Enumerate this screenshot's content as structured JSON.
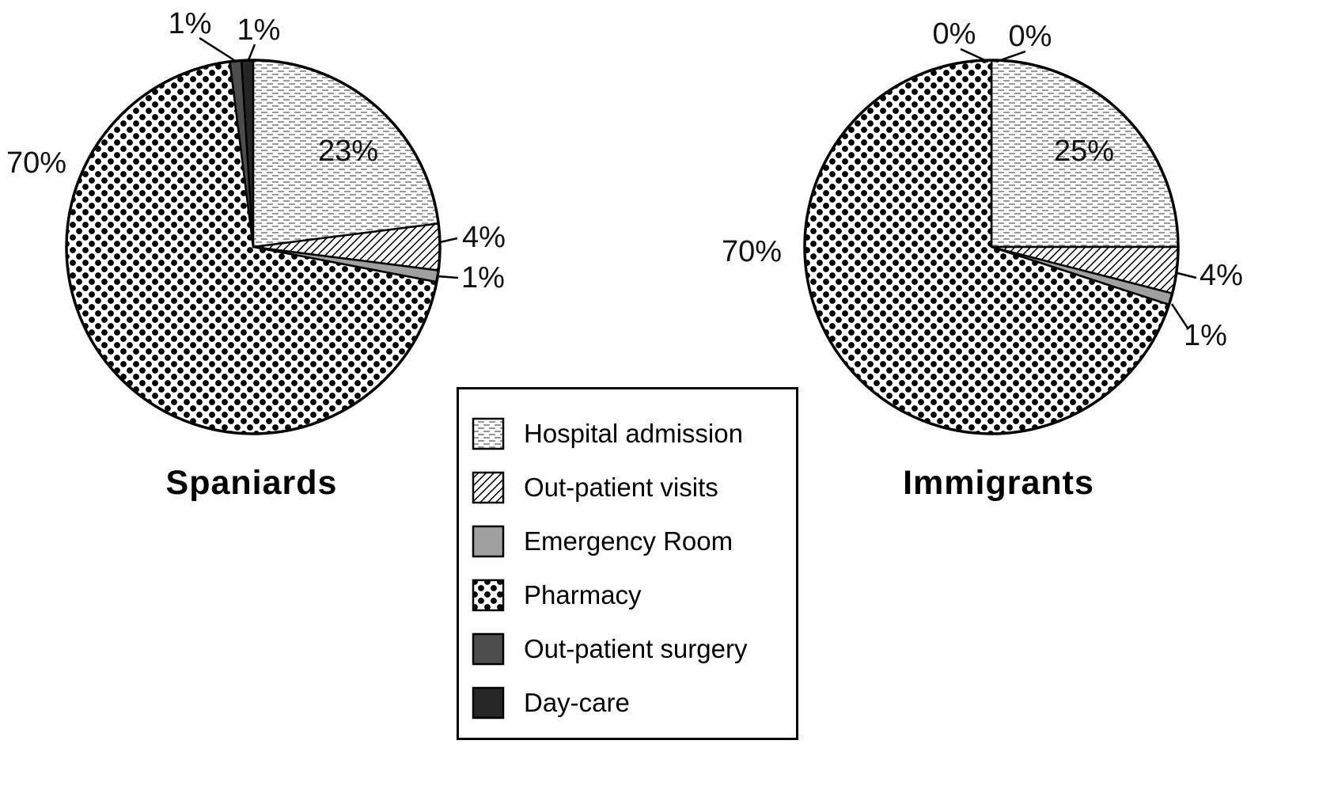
{
  "figure": {
    "type": "double-pie-chart"
  },
  "chart_data": [
    {
      "type": "pie",
      "title": "Spaniards",
      "categories": [
        "Hospital admission",
        "Out-patient visits",
        "Emergency Room",
        "Pharmacy",
        "Out-patient surgery",
        "Day-care"
      ],
      "values": [
        23,
        4,
        1,
        70,
        1,
        1
      ],
      "value_labels": [
        "23%",
        "4%",
        "1%",
        "70%",
        "1%",
        "1%"
      ],
      "units": "percent"
    },
    {
      "type": "pie",
      "title": "Immigrants",
      "categories": [
        "Hospital admission",
        "Out-patient visits",
        "Emergency Room",
        "Pharmacy",
        "Out-patient surgery",
        "Day-care"
      ],
      "values": [
        25,
        4,
        1,
        70,
        0,
        0
      ],
      "value_labels": [
        "25%",
        "4%",
        "1%",
        "70%",
        "0%",
        "0%"
      ],
      "units": "percent"
    }
  ],
  "legend": {
    "position": "bottom-center",
    "items": [
      {
        "label": "Hospital admission",
        "pattern": "horizontal-dashes",
        "color": "#ffffff"
      },
      {
        "label": "Out-patient visits",
        "pattern": "diagonal-hatch",
        "color": "#000000"
      },
      {
        "label": "Emergency Room",
        "pattern": "solid",
        "color": "#a0a0a0"
      },
      {
        "label": "Pharmacy",
        "pattern": "polka-dots",
        "color": "#000000"
      },
      {
        "label": "Out-patient surgery",
        "pattern": "solid",
        "color": "#4d4d4d"
      },
      {
        "label": "Day-care",
        "pattern": "solid",
        "color": "#262626"
      }
    ]
  }
}
